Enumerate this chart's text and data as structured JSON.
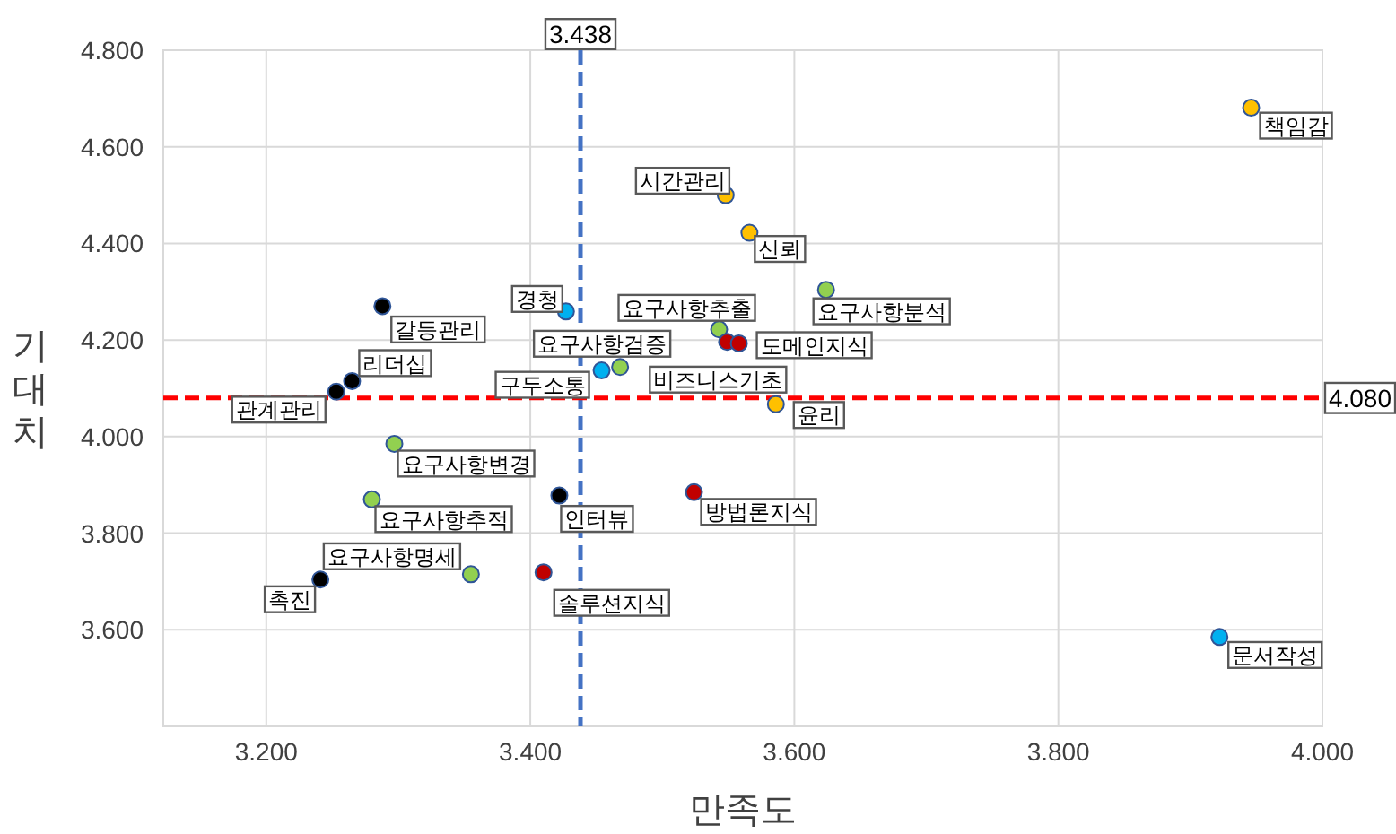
{
  "chart_data": {
    "type": "scatter",
    "xlabel": "만족도",
    "ylabel": "기대치",
    "xlim": [
      3.122,
      4.0
    ],
    "ylim": [
      3.4,
      4.8
    ],
    "xticks": [
      {
        "value": 3.2,
        "label": "3.200"
      },
      {
        "value": 3.4,
        "label": "3.400"
      },
      {
        "value": 3.6,
        "label": "3.600"
      },
      {
        "value": 3.8,
        "label": "3.800"
      },
      {
        "value": 4.0,
        "label": "4.000"
      }
    ],
    "yticks": [
      {
        "value": 3.6,
        "label": "3.600"
      },
      {
        "value": 3.8,
        "label": "3.800"
      },
      {
        "value": 4.0,
        "label": "4.000"
      },
      {
        "value": 4.2,
        "label": "4.200"
      },
      {
        "value": 4.4,
        "label": "4.400"
      },
      {
        "value": 4.6,
        "label": "4.600"
      },
      {
        "value": 4.8,
        "label": "4.800"
      }
    ],
    "grid": true,
    "marker": "circle",
    "series": [
      {
        "color": "#ffc000",
        "x": [
          3.946,
          3.548,
          3.566,
          3.586
        ],
        "values": [
          4.681,
          4.5,
          4.422,
          4.067
        ]
      },
      {
        "color": "#92d050",
        "x": [
          3.624,
          3.543,
          3.468,
          3.297,
          3.28,
          3.355
        ],
        "values": [
          4.304,
          4.222,
          4.144,
          3.985,
          3.87,
          3.715
        ]
      },
      {
        "color": "#00b0f0",
        "x": [
          3.427,
          3.454,
          3.922
        ],
        "values": [
          4.259,
          4.137,
          3.585
        ]
      },
      {
        "color": "#000000",
        "x": [
          3.288,
          3.265,
          3.253,
          3.422,
          3.241
        ],
        "values": [
          4.27,
          4.115,
          4.093,
          3.878,
          3.704
        ]
      },
      {
        "color": "#c00000",
        "x": [
          3.549,
          3.558,
          3.524,
          3.41
        ],
        "values": [
          4.196,
          4.193,
          3.885,
          3.719
        ]
      }
    ],
    "ref_lines": [
      {
        "axis": "x",
        "value": 3.438,
        "label": "3.438",
        "color": "#4472c4",
        "line_style": "dashed"
      },
      {
        "axis": "y",
        "value": 4.08,
        "label": "4.080",
        "color": "#ff0000",
        "line_style": "dashed"
      }
    ],
    "annotations": [
      {
        "text": "책임감",
        "x": 3.946,
        "y": 4.681
      },
      {
        "text": "시간관리",
        "x": 3.548,
        "y": 4.5
      },
      {
        "text": "신뢰",
        "x": 3.566,
        "y": 4.422
      },
      {
        "text": "윤리",
        "x": 3.586,
        "y": 4.067
      },
      {
        "text": "요구사항분석",
        "x": 3.624,
        "y": 4.304
      },
      {
        "text": "요구사항추출",
        "x": 3.543,
        "y": 4.222
      },
      {
        "text": "요구사항검증",
        "x": 3.468,
        "y": 4.144
      },
      {
        "text": "요구사항변경",
        "x": 3.297,
        "y": 3.985
      },
      {
        "text": "요구사항추적",
        "x": 3.28,
        "y": 3.87
      },
      {
        "text": "요구사항명세",
        "x": 3.355,
        "y": 3.715
      },
      {
        "text": "경청",
        "x": 3.427,
        "y": 4.259
      },
      {
        "text": "구두소통",
        "x": 3.454,
        "y": 4.137
      },
      {
        "text": "문서작성",
        "x": 3.922,
        "y": 3.585
      },
      {
        "text": "갈등관리",
        "x": 3.288,
        "y": 4.27
      },
      {
        "text": "리더십",
        "x": 3.265,
        "y": 4.115
      },
      {
        "text": "관계관리",
        "x": 3.253,
        "y": 4.093
      },
      {
        "text": "인터뷰",
        "x": 3.422,
        "y": 3.878
      },
      {
        "text": "촉진",
        "x": 3.241,
        "y": 3.704
      },
      {
        "text": "비즈니스기초",
        "x": 3.549,
        "y": 4.196
      },
      {
        "text": "도메인지식",
        "x": 3.558,
        "y": 4.193
      },
      {
        "text": "방법론지식",
        "x": 3.524,
        "y": 3.885
      },
      {
        "text": "솔루션지식",
        "x": 3.41,
        "y": 3.719
      }
    ]
  }
}
